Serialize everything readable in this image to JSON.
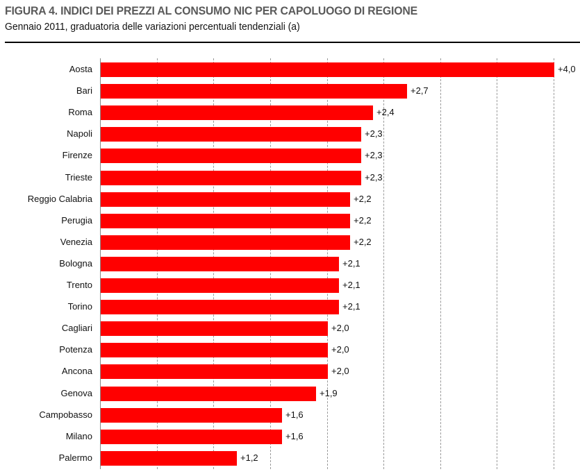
{
  "header": {
    "title": "FIGURA 4. INDICI DEI PREZZI AL CONSUMO NIC PER CAPOLUOGO DI REGIONE",
    "subtitle": "Gennaio 2011, graduatoria delle variazioni percentuali tendenziali (a)"
  },
  "colors": {
    "bar": "#ff0000",
    "grid": "#9a9a9a",
    "title": "#5a5a5a"
  },
  "chart_data": {
    "type": "bar",
    "orientation": "horizontal",
    "title": "FIGURA 4. INDICI DEI PREZZI AL CONSUMO NIC PER CAPOLUOGO DI REGIONE",
    "subtitle": "Gennaio 2011, graduatoria delle variazioni percentuali tendenziali (a)",
    "xlabel": "",
    "ylabel": "",
    "xlim": [
      0,
      4.0
    ],
    "grid": true,
    "grid_step": 0.5,
    "legend": null,
    "categories": [
      "Aosta",
      "Bari",
      "Roma",
      "Napoli",
      "Firenze",
      "Trieste",
      "Reggio Calabria",
      "Perugia",
      "Venezia",
      "Bologna",
      "Trento",
      "Torino",
      "Cagliari",
      "Potenza",
      "Ancona",
      "Genova",
      "Campobasso",
      "Milano",
      "Palermo"
    ],
    "values": [
      4.0,
      2.7,
      2.4,
      2.3,
      2.3,
      2.3,
      2.2,
      2.2,
      2.2,
      2.1,
      2.1,
      2.1,
      2.0,
      2.0,
      2.0,
      1.9,
      1.6,
      1.6,
      1.2
    ],
    "labels": [
      "+4,0",
      "+2,7",
      "+2,4",
      "+2,3",
      "+2,3",
      "+2,3",
      "+2,2",
      "+2,2",
      "+2,2",
      "+2,1",
      "+2,1",
      "+2,1",
      "+2,0",
      "+2,0",
      "+2,0",
      "+1,9",
      "+1,6",
      "+1,6",
      "+1,2"
    ]
  }
}
